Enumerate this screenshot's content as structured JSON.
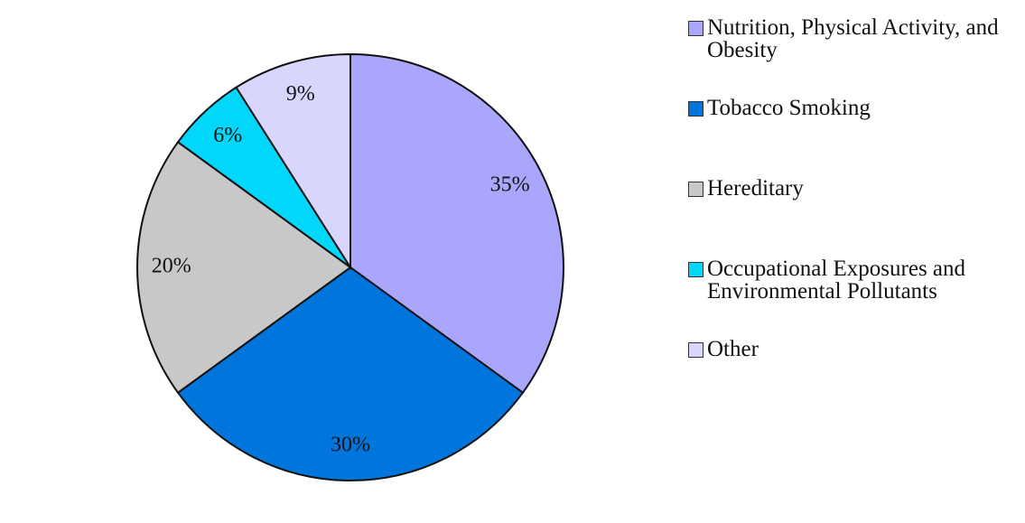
{
  "chart_data": {
    "type": "pie",
    "categories": [
      "Nutrition, Physical Activity, and Obesity",
      "Tobacco Smoking",
      "Hereditary",
      "Occupational Exposures and Environmental Pollutants",
      "Other"
    ],
    "values": [
      35,
      30,
      20,
      6,
      9
    ],
    "value_labels": [
      "35%",
      "30%",
      "20%",
      "6%",
      "9%"
    ],
    "colors": [
      "#aaa6fc",
      "#0076dd",
      "#c8c8c8",
      "#00d7fa",
      "#d8d6fc"
    ],
    "legend": "right"
  }
}
